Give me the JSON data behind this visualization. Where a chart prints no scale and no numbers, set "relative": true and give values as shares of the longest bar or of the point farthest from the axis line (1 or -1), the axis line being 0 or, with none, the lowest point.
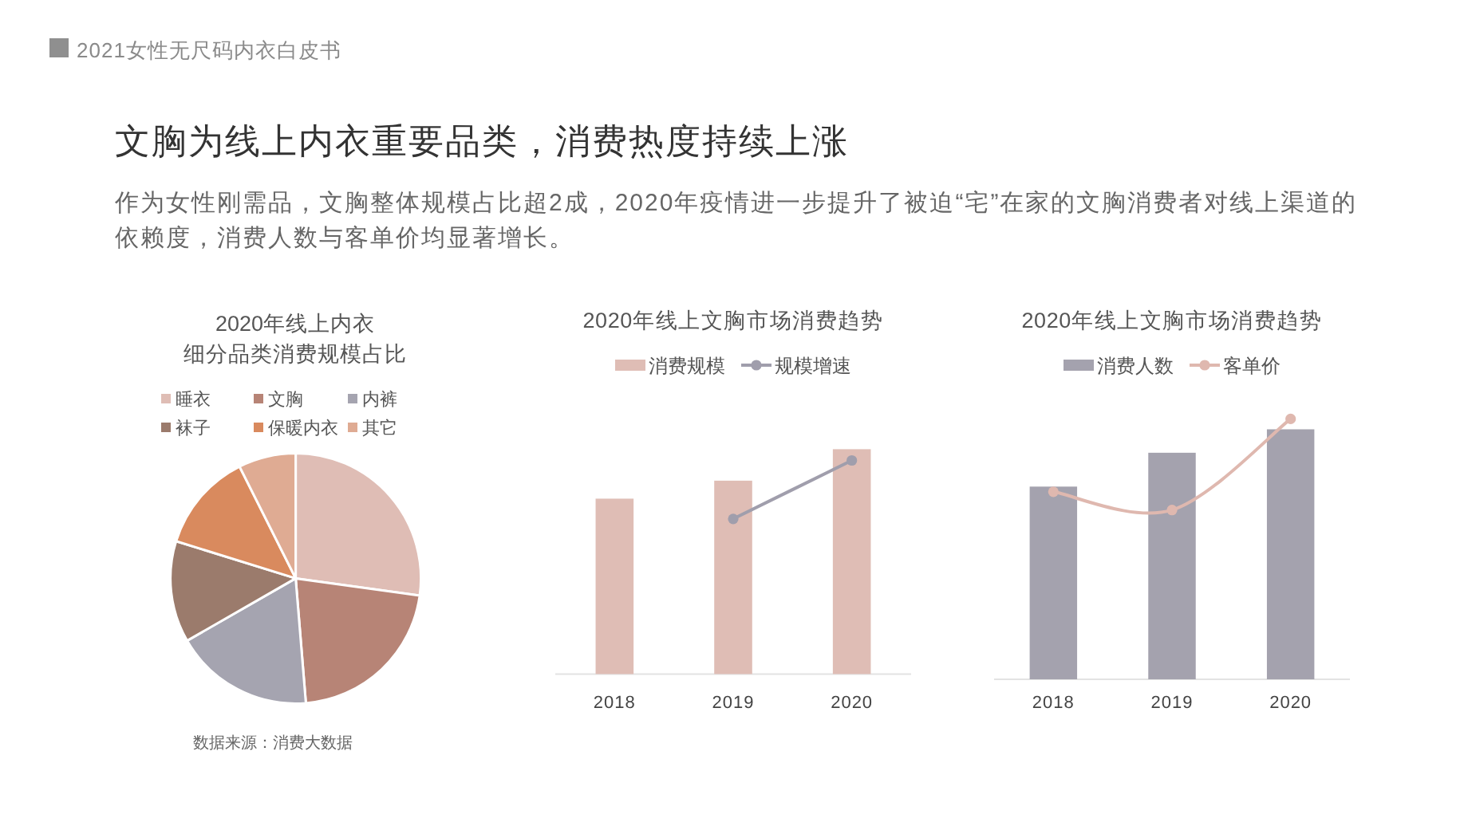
{
  "chart_data": [
    {
      "type": "other",
      "title": "文胸为线上内衣重要品类，消费热度持续上涨",
      "subtitle": "作为女性刚需品，文胸整体规模占比超2成，2020年疫情进一步提升了被迫“宅”在家的文胸消费者对线上渠道的依赖度，消费人数与客单价均显著增长。",
      "annotations": [
        "2021女性无尺码内衣白皮书"
      ]
    },
    {
      "type": "pie",
      "title": "2020年线上内衣细分品类消费规模占比",
      "categories": [
        "睡衣",
        "文胸",
        "内裤",
        "袜子",
        "保暖内衣",
        "其它"
      ],
      "values": [
        27.2,
        21.5,
        18.0,
        13.1,
        12.8,
        7.4
      ],
      "colors": [
        "#dfbdb5",
        "#b78476",
        "#a5a4b0",
        "#9b7b6c",
        "#d98a5e",
        "#dfab93"
      ],
      "legend": "top",
      "annotations": [
        "数据来源：消费大数据"
      ]
    },
    {
      "type": "bar",
      "title": "2020年线上文胸市场消费趋势",
      "categories": [
        "2018",
        "2019",
        "2020"
      ],
      "relative": true,
      "series": [
        {
          "name": "消费规模",
          "type": "bar",
          "color": "#dfbdb5",
          "values": [
            0.78,
            0.86,
            1
          ]
        },
        {
          "name": "规模增速",
          "type": "line",
          "color": "#a09eac",
          "values": [
            null,
            0.69,
            0.95
          ]
        }
      ],
      "marker": "circle",
      "legend": "top"
    },
    {
      "type": "bar",
      "title": "2020年线上文胸市场消费趋势",
      "categories": [
        "2018",
        "2019",
        "2020"
      ],
      "relative": true,
      "series": [
        {
          "name": "消费人数",
          "type": "bar",
          "color": "#a4a2ae",
          "values": [
            0.74,
            0.87,
            0.96
          ]
        },
        {
          "name": "客单价",
          "type": "line",
          "color": "#dfb8af",
          "values": [
            0.72,
            0.65,
            1
          ]
        }
      ],
      "marker": "circle",
      "legend": "top"
    }
  ]
}
